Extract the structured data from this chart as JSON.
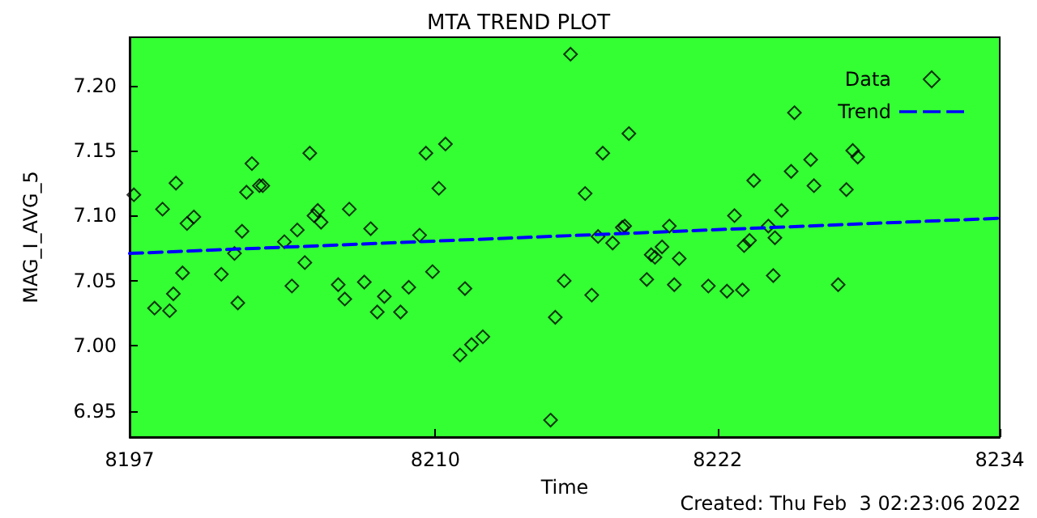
{
  "chart_data": {
    "type": "scatter",
    "title": "MTA TREND PLOT",
    "xlabel": "Time",
    "ylabel": "MAG_I_AVG_5",
    "annotations": [
      "Created: Thu Feb  3 02:23:06 2022"
    ],
    "xlim": [
      8197,
      8234
    ],
    "xticks": [
      8197,
      8210,
      8222,
      8234
    ],
    "ylim": [
      6.93,
      7.237
    ],
    "yticks": [
      6.95,
      {
        "value": 7.0,
        "label": "7.00"
      },
      7.05,
      {
        "value": 7.1,
        "label": "7.10"
      },
      7.15,
      {
        "value": 7.2,
        "label": "7.20"
      }
    ],
    "grid": false,
    "legend": "top right",
    "series": [
      {
        "name": "Data",
        "marker": "diamond",
        "color": "#000000",
        "x": [
          8197.18,
          8198.06,
          8198.4,
          8198.7,
          8198.86,
          8198.97,
          8199.25,
          8199.44,
          8199.73,
          8200.9,
          8201.46,
          8201.6,
          8201.78,
          8201.97,
          8202.2,
          8202.52,
          8202.66,
          8203.58,
          8203.9,
          8204.13,
          8204.45,
          8204.66,
          8204.84,
          8205.0,
          8205.14,
          8205.87,
          8206.15,
          8206.34,
          8206.98,
          8207.25,
          8207.53,
          8207.83,
          8208.52,
          8208.87,
          8209.33,
          8209.6,
          8209.88,
          8210.15,
          8210.43,
          8211.05,
          8211.26,
          8211.54,
          8212.02,
          8214.9,
          8215.1,
          8215.48,
          8215.75,
          8216.37,
          8216.65,
          8216.92,
          8217.12,
          8217.54,
          8217.95,
          8218.05,
          8218.23,
          8218.99,
          8219.18,
          8219.34,
          8219.64,
          8219.95,
          8220.16,
          8220.37,
          8221.61,
          8222.4,
          8222.72,
          8223.06,
          8223.13,
          8223.36,
          8223.54,
          8224.16,
          8224.37,
          8224.44,
          8224.72,
          8225.13,
          8225.27,
          8225.96,
          8226.1,
          8227.13,
          8227.48,
          8227.75,
          8227.96
        ],
        "values": [
          7.116,
          7.029,
          7.105,
          7.027,
          7.04,
          7.125,
          7.056,
          7.094,
          7.099,
          7.055,
          7.071,
          7.033,
          7.088,
          7.118,
          7.14,
          7.123,
          7.123,
          7.08,
          7.046,
          7.089,
          7.064,
          7.148,
          7.1,
          7.104,
          7.095,
          7.047,
          7.036,
          7.105,
          7.049,
          7.09,
          7.026,
          7.038,
          7.026,
          7.045,
          7.085,
          7.148,
          7.057,
          7.121,
          7.155,
          6.993,
          7.044,
          7.001,
          7.007,
          6.943,
          7.022,
          7.05,
          7.224,
          7.117,
          7.039,
          7.084,
          7.148,
          7.079,
          7.091,
          7.092,
          7.163,
          7.051,
          7.07,
          7.068,
          7.076,
          7.092,
          7.047,
          7.067,
          7.046,
          7.042,
          7.1,
          7.043,
          7.077,
          7.081,
          7.127,
          7.092,
          7.054,
          7.083,
          7.104,
          7.134,
          7.179,
          7.143,
          7.123,
          7.047,
          7.12,
          7.15,
          7.145
        ]
      },
      {
        "name": "Trend",
        "type": "line",
        "marker": "none",
        "line_style": "dashed",
        "color": "#0000ff",
        "x": [
          8197,
          8234
        ],
        "values": [
          7.071,
          7.098
        ]
      }
    ]
  }
}
